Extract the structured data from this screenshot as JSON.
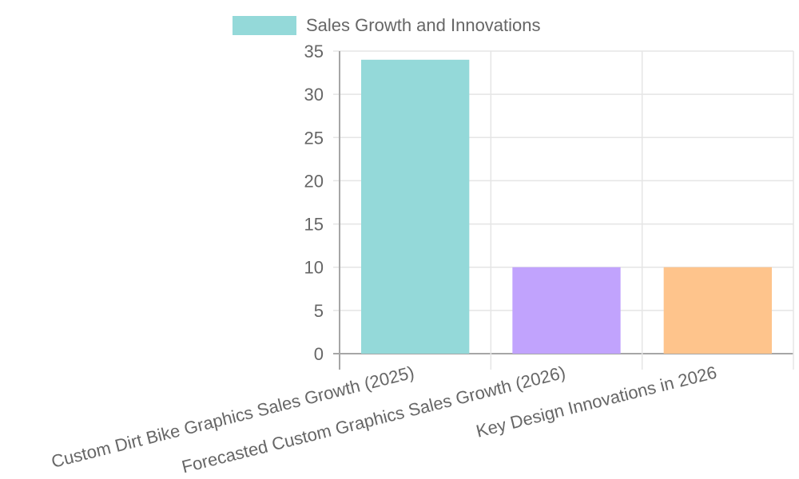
{
  "chart_data": {
    "type": "bar",
    "title": "",
    "xlabel": "",
    "ylabel": "",
    "ylim": [
      0,
      35
    ],
    "yticks": [
      0,
      5,
      10,
      15,
      20,
      25,
      30,
      35
    ],
    "grid": true,
    "legend_position": "top",
    "categories": [
      "Custom Dirt Bike Graphics Sales Growth (2025)",
      "Forecasted Custom Graphics Sales Growth (2026)",
      "Key Design Innovations in 2026"
    ],
    "series": [
      {
        "name": "Sales Growth and Innovations",
        "values": [
          34,
          10,
          10
        ],
        "colors": [
          "#94d9d9",
          "#c1a3fd",
          "#fec48c"
        ]
      }
    ]
  },
  "legend": {
    "label": "Sales Growth and Innovations",
    "swatch_color": "#94d9d9"
  },
  "colors": {
    "grid": "#e5e5e5",
    "axis": "#a6a6a6",
    "text": "#666666"
  }
}
